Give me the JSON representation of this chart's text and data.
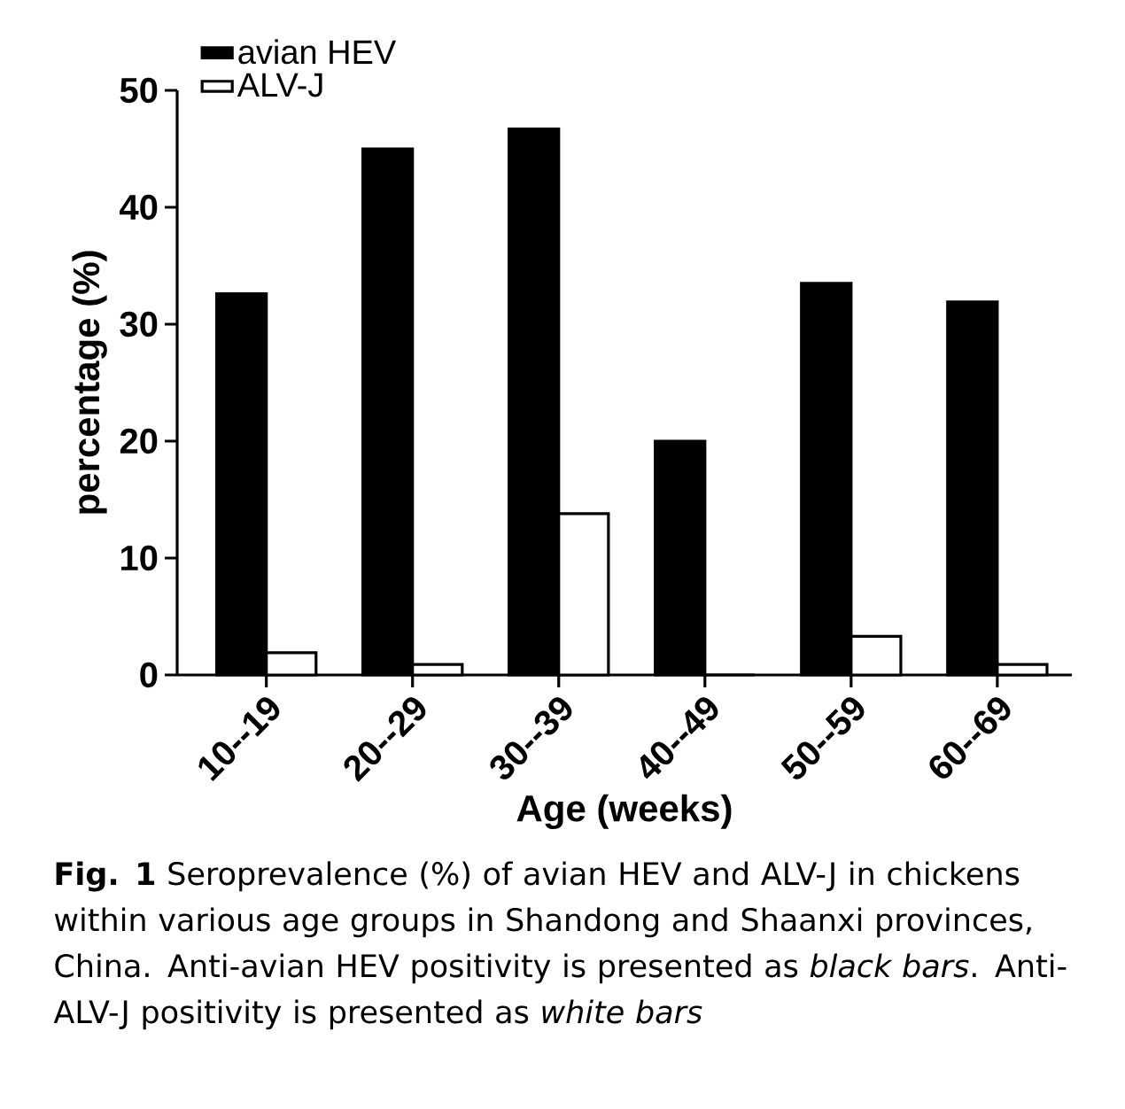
{
  "chart_data": {
    "type": "bar",
    "categories": [
      "10--19",
      "20--29",
      "30--39",
      "40--49",
      "50--59",
      "60--69"
    ],
    "series": [
      {
        "name": "avian HEV",
        "color": "#000000",
        "values": [
          32.6,
          45.0,
          46.7,
          20.0,
          33.5,
          31.9
        ]
      },
      {
        "name": "ALV-J",
        "color": "#ffffff",
        "values": [
          1.9,
          0.9,
          13.8,
          0,
          3.3,
          0.9
        ]
      }
    ],
    "xlabel": "Age (weeks)",
    "ylabel": "percentage (%)",
    "ylim": [
      0,
      50
    ],
    "yticks": [
      0,
      10,
      20,
      30,
      40,
      50
    ],
    "legend": "top left",
    "annotations": [
      "**Fig. 1** Seroprevalence (%) of avian HEV and ALV-J in chickens within various age groups in Shandong and Shaanxi provinces, China. Anti-avian HEV positivity is presented as *black bars*. Anti-ALV-J positivity is presented as *white bars*"
    ]
  }
}
